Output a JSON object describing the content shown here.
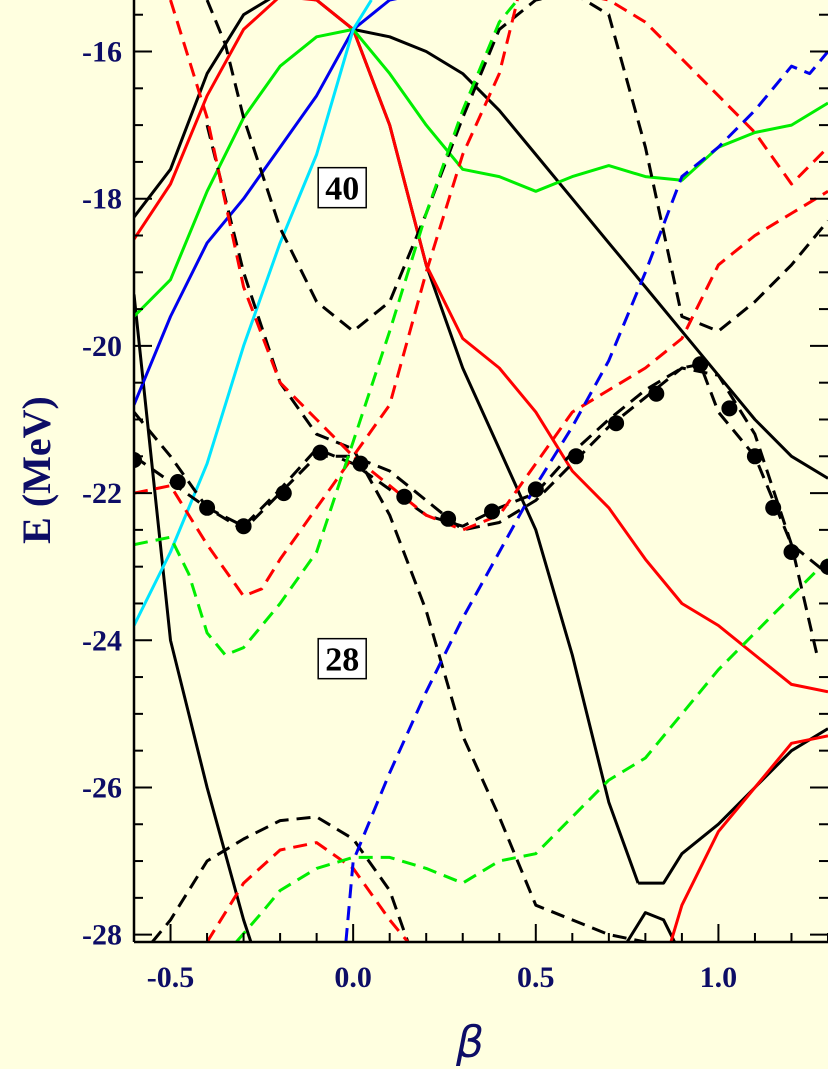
{
  "chart_data": {
    "type": "line",
    "xlabel": "β",
    "ylabel": "E (MeV)",
    "xlim": [
      -0.6,
      1.3
    ],
    "ylim": [
      -28.1,
      -15.3
    ],
    "xticks": [
      -0.5,
      0.0,
      0.5,
      1.0
    ],
    "xtick_labels": [
      "-0.5",
      "0.0",
      "0.5",
      "1.0"
    ],
    "yticks": [
      -28,
      -26,
      -24,
      -22,
      -20,
      -18,
      -16
    ],
    "ytick_labels": [
      "-28",
      "-26",
      "-24",
      "-22",
      "-20",
      "-18",
      "-16"
    ],
    "x_minor_step": 0.1,
    "y_minor_step": 0.5,
    "grid": false,
    "annotations": [
      {
        "text": "40",
        "x": -0.03,
        "y": -17.85
      },
      {
        "text": "28",
        "x": -0.03,
        "y": -24.25
      }
    ],
    "colors": {
      "background": "#ffffe0",
      "black": "#000000",
      "red": "#ff0000",
      "green": "#00ee00",
      "blue": "#0000ee",
      "cyan": "#00e5ff",
      "text": "#0d0d66"
    },
    "series": [
      {
        "color": "black",
        "dash": "solid",
        "x": [
          -0.6,
          -0.5,
          -0.4,
          -0.3,
          -0.2,
          -0.1,
          0.0
        ],
        "y": [
          -18.25,
          -17.6,
          -16.3,
          -15.5,
          -15.2,
          -15.3,
          -15.7
        ]
      },
      {
        "color": "black",
        "dash": "solid",
        "x": [
          0.0,
          0.1,
          0.2,
          0.3,
          0.4,
          0.5,
          0.6,
          0.7,
          0.8,
          0.9,
          1.0,
          1.1,
          1.2,
          1.3
        ],
        "y": [
          -15.7,
          -15.8,
          -16.0,
          -16.3,
          -16.8,
          -17.4,
          -18.0,
          -18.6,
          -19.2,
          -19.8,
          -20.4,
          -21.0,
          -21.5,
          -21.8
        ]
      },
      {
        "color": "black",
        "dash": "solid",
        "x": [
          -0.6,
          -0.5,
          -0.4,
          -0.3,
          -0.28
        ],
        "y": [
          -19.3,
          -24.0,
          -26.0,
          -27.8,
          -28.1
        ]
      },
      {
        "color": "black",
        "dash": "solid",
        "x": [
          0.0,
          0.1,
          0.2,
          0.3,
          0.4,
          0.5,
          0.6,
          0.7,
          0.78
        ],
        "y": [
          -15.7,
          -17.0,
          -18.9,
          -20.3,
          -21.4,
          -22.5,
          -24.2,
          -26.2,
          -27.3
        ]
      },
      {
        "color": "black",
        "dash": "solid",
        "x": [
          0.78,
          0.85,
          0.9,
          1.0,
          1.1,
          1.2,
          1.3
        ],
        "y": [
          -27.3,
          -27.3,
          -26.9,
          -26.5,
          -26.0,
          -25.5,
          -25.2
        ]
      },
      {
        "color": "black",
        "dash": "solid",
        "x": [
          0.75,
          0.8,
          0.85,
          0.88
        ],
        "y": [
          -28.1,
          -27.7,
          -27.8,
          -28.1
        ]
      },
      {
        "color": "red",
        "dash": "solid",
        "x": [
          -0.6,
          -0.5,
          -0.4,
          -0.3,
          -0.2,
          -0.1,
          0.0
        ],
        "y": [
          -18.55,
          -17.8,
          -16.6,
          -15.7,
          -15.25,
          -15.3,
          -15.7
        ]
      },
      {
        "color": "red",
        "dash": "solid",
        "x": [
          0.0,
          0.1,
          0.2,
          0.3,
          0.4,
          0.5,
          0.6,
          0.7,
          0.8,
          0.9,
          1.0,
          1.1,
          1.2,
          1.3
        ],
        "y": [
          -15.7,
          -17.0,
          -18.9,
          -19.9,
          -20.3,
          -20.9,
          -21.7,
          -22.2,
          -22.9,
          -23.5,
          -23.8,
          -24.2,
          -24.6,
          -24.7
        ]
      },
      {
        "color": "red",
        "dash": "solid",
        "x": [
          0.87,
          0.9,
          1.0,
          1.1,
          1.2,
          1.3
        ],
        "y": [
          -28.1,
          -27.6,
          -26.6,
          -26.0,
          -25.4,
          -25.3
        ]
      },
      {
        "color": "green",
        "dash": "solid",
        "x": [
          -0.6,
          -0.5,
          -0.4,
          -0.3,
          -0.2,
          -0.1,
          0.0
        ],
        "y": [
          -19.6,
          -19.1,
          -17.9,
          -16.9,
          -16.2,
          -15.8,
          -15.7
        ]
      },
      {
        "color": "green",
        "dash": "solid",
        "x": [
          0.0,
          0.1,
          0.2,
          0.3,
          0.4,
          0.5,
          0.6,
          0.7,
          0.8,
          0.9,
          1.0,
          1.1,
          1.2,
          1.3
        ],
        "y": [
          -15.7,
          -16.3,
          -17.0,
          -17.6,
          -17.7,
          -17.9,
          -17.7,
          -17.55,
          -17.7,
          -17.75,
          -17.3,
          -17.1,
          -17.0,
          -16.7
        ]
      },
      {
        "color": "blue",
        "dash": "solid",
        "x": [
          -0.6,
          -0.5,
          -0.4,
          -0.3,
          -0.2,
          -0.1,
          0.0,
          0.1,
          0.2,
          0.3,
          0.4
        ],
        "y": [
          -20.8,
          -19.6,
          -18.6,
          -18.0,
          -17.3,
          -16.6,
          -15.7,
          -15.3,
          -15.2,
          -15.15,
          -15.1
        ]
      },
      {
        "color": "cyan",
        "dash": "solid",
        "x": [
          -0.6,
          -0.5,
          -0.4,
          -0.3,
          -0.2,
          -0.1,
          0.0,
          0.05
        ],
        "y": [
          -23.8,
          -22.8,
          -21.6,
          -20.0,
          -18.6,
          -17.4,
          -15.7,
          -15.3
        ]
      },
      {
        "color": "black",
        "dash": "dashed",
        "x": [
          -0.6,
          -0.5,
          -0.4,
          -0.3,
          -0.2,
          -0.1,
          0.0,
          0.1,
          0.2,
          0.3,
          0.4,
          0.5,
          0.6,
          0.7,
          0.8,
          0.9,
          0.95,
          1.0,
          1.1,
          1.2,
          1.3
        ],
        "y": [
          -21.5,
          -21.85,
          -22.2,
          -22.45,
          -21.95,
          -21.4,
          -21.6,
          -21.95,
          -22.3,
          -22.45,
          -22.2,
          -22.0,
          -21.45,
          -21.0,
          -20.6,
          -20.3,
          -20.25,
          -20.9,
          -21.5,
          -22.7,
          -23.1
        ]
      },
      {
        "color": "black",
        "dash": "dashed",
        "x": [
          -0.6,
          -0.5,
          -0.4,
          -0.3,
          -0.2,
          -0.1,
          0.0,
          0.1,
          0.2,
          0.3,
          0.4,
          0.5,
          0.6,
          0.7,
          0.8,
          0.9,
          1.0,
          1.1,
          1.2,
          1.27
        ],
        "y": [
          -20.9,
          -21.5,
          -22.2,
          -22.5,
          -22.0,
          -21.5,
          -21.5,
          -21.7,
          -22.1,
          -22.5,
          -22.4,
          -22.1,
          -21.6,
          -21.1,
          -20.7,
          -20.3,
          -20.4,
          -21.2,
          -22.7,
          -24.2
        ]
      },
      {
        "color": "black",
        "dash": "dashed",
        "x": [
          -0.4,
          -0.35,
          -0.3,
          -0.2,
          -0.1,
          0.0,
          0.1,
          0.2,
          0.3,
          0.4,
          0.5,
          0.6,
          0.7,
          0.8,
          0.9,
          1.0,
          1.1,
          1.2,
          1.3
        ],
        "y": [
          -15.3,
          -15.9,
          -16.9,
          -18.4,
          -19.4,
          -19.8,
          -19.4,
          -18.2,
          -16.9,
          -15.7,
          -15.3,
          -15.2,
          -15.5,
          -17.3,
          -19.6,
          -19.8,
          -19.4,
          -18.9,
          -18.3
        ]
      },
      {
        "color": "black",
        "dash": "dashed",
        "x": [
          -0.4,
          -0.3,
          -0.2,
          -0.1,
          0.0,
          0.1,
          0.2,
          0.3,
          0.4,
          0.5,
          0.6,
          0.7,
          0.8
        ],
        "y": [
          -17.0,
          -19.0,
          -20.5,
          -21.2,
          -21.4,
          -22.3,
          -23.6,
          -25.3,
          -26.4,
          -27.6,
          -27.8,
          -28.0,
          -28.1
        ]
      },
      {
        "color": "black",
        "dash": "dashed",
        "x": [
          -0.55,
          -0.5,
          -0.4,
          -0.3,
          -0.2,
          -0.1,
          0.0,
          0.1,
          0.15
        ],
        "y": [
          -28.1,
          -27.8,
          -27.0,
          -26.7,
          -26.45,
          -26.4,
          -26.7,
          -27.4,
          -28.1
        ]
      },
      {
        "color": "red",
        "dash": "dashed",
        "x": [
          -0.6,
          -0.5,
          -0.4,
          -0.3,
          -0.25,
          -0.2,
          -0.1,
          0.0,
          0.1,
          0.2,
          0.3,
          0.4,
          0.5,
          0.6,
          0.7,
          0.8,
          0.9,
          1.0,
          1.1,
          1.2,
          1.3
        ],
        "y": [
          -22.0,
          -21.9,
          -22.7,
          -23.4,
          -23.3,
          -22.9,
          -22.2,
          -21.5,
          -21.9,
          -22.3,
          -22.5,
          -22.3,
          -21.6,
          -20.9,
          -20.6,
          -20.3,
          -19.9,
          -18.9,
          -18.5,
          -18.2,
          -17.9
        ]
      },
      {
        "color": "red",
        "dash": "dashed",
        "x": [
          -0.5,
          -0.4,
          -0.3,
          -0.2,
          -0.1,
          0.0,
          0.1,
          0.2,
          0.3,
          0.4,
          0.45
        ],
        "y": [
          -15.3,
          -16.9,
          -19.2,
          -20.5,
          -21.0,
          -21.5,
          -20.8,
          -19.0,
          -17.4,
          -16.3,
          -15.3
        ]
      },
      {
        "color": "red",
        "dash": "dashed",
        "x": [
          0.6,
          0.7,
          0.8,
          0.9,
          1.0,
          1.1,
          1.2,
          1.3
        ],
        "y": [
          -15.2,
          -15.3,
          -15.6,
          -16.1,
          -16.6,
          -17.1,
          -17.8,
          -17.3
        ]
      },
      {
        "color": "red",
        "dash": "dashed",
        "x": [
          -0.4,
          -0.3,
          -0.2,
          -0.1,
          0.0,
          0.1,
          0.15
        ],
        "y": [
          -28.1,
          -27.3,
          -26.85,
          -26.75,
          -27.1,
          -27.8,
          -28.1
        ]
      },
      {
        "color": "green",
        "dash": "dashed",
        "x": [
          -0.6,
          -0.5,
          -0.45,
          -0.4,
          -0.35,
          -0.3,
          -0.2,
          -0.1,
          0.0,
          0.1,
          0.2,
          0.3,
          0.4,
          0.45
        ],
        "y": [
          -22.7,
          -22.6,
          -23.1,
          -23.9,
          -24.2,
          -24.1,
          -23.5,
          -22.8,
          -21.3,
          -19.8,
          -18.2,
          -16.8,
          -15.6,
          -15.3
        ]
      },
      {
        "color": "green",
        "dash": "dashed",
        "x": [
          -0.32,
          -0.25,
          -0.2,
          -0.1,
          0.0,
          0.1,
          0.2,
          0.3,
          0.4,
          0.5,
          0.6,
          0.7,
          0.8,
          0.9,
          1.0,
          1.1,
          1.2,
          1.3
        ],
        "y": [
          -28.1,
          -27.7,
          -27.4,
          -27.1,
          -26.95,
          -26.95,
          -27.1,
          -27.3,
          -27.0,
          -26.9,
          -26.4,
          -25.9,
          -25.6,
          -25.0,
          -24.4,
          -23.9,
          -23.4,
          -22.9
        ]
      },
      {
        "color": "blue",
        "dash": "dashed",
        "x": [
          -0.02,
          0.0,
          0.1,
          0.2,
          0.3,
          0.4,
          0.5,
          0.6,
          0.7,
          0.8,
          0.9,
          1.0,
          1.1,
          1.2,
          1.25,
          1.3
        ],
        "y": [
          -28.1,
          -27.0,
          -25.8,
          -24.7,
          -23.7,
          -22.8,
          -21.9,
          -21.1,
          -20.2,
          -19.0,
          -17.7,
          -17.3,
          -16.8,
          -16.2,
          -16.3,
          -16.0
        ]
      }
    ],
    "markers": {
      "color": "black",
      "x": [
        -0.6,
        -0.48,
        -0.4,
        -0.3,
        -0.19,
        -0.09,
        0.02,
        0.14,
        0.26,
        0.38,
        0.5,
        0.61,
        0.72,
        0.83,
        0.95,
        1.03,
        1.1,
        1.15,
        1.2,
        1.3
      ],
      "y": [
        -21.55,
        -21.85,
        -22.2,
        -22.45,
        -22.0,
        -21.45,
        -21.6,
        -22.05,
        -22.35,
        -22.25,
        -21.95,
        -21.5,
        -21.05,
        -20.65,
        -20.25,
        -20.85,
        -21.5,
        -22.2,
        -22.8,
        -23.0
      ]
    }
  }
}
